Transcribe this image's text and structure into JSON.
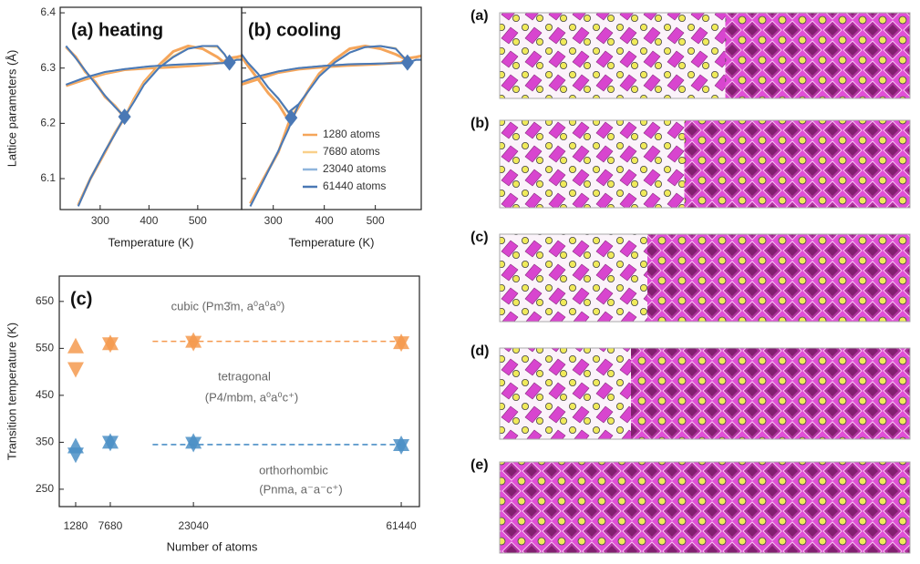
{
  "chart_data": [
    {
      "type": "line",
      "title": "(a) heating",
      "xlabel": "Temperature (K)",
      "ylabel": "Lattice parameters (Å)",
      "xlim": [
        218,
        590
      ],
      "ylim": [
        6.044,
        6.41
      ],
      "xticks": [
        300,
        400,
        500
      ],
      "yticks": [
        6.1,
        6.2,
        6.3,
        6.4
      ],
      "x": [
        230,
        250,
        270,
        290,
        310,
        330,
        350,
        370,
        390,
        420,
        450,
        480,
        510,
        540,
        555,
        565,
        580,
        590,
        null,
        230,
        270,
        310,
        350,
        400,
        450,
        500,
        550,
        565,
        null,
        255,
        280,
        310,
        330,
        350
      ],
      "series": [
        {
          "name": "1280 atoms",
          "color": "#f5a55a",
          "values": [
            6.338,
            6.32,
            6.293,
            6.275,
            6.248,
            6.232,
            6.21,
            6.245,
            6.275,
            6.305,
            6.33,
            6.34,
            6.335,
            6.32,
            6.31,
            6.318,
            6.32,
            6.322,
            null,
            6.268,
            6.28,
            6.29,
            6.297,
            6.3,
            6.302,
            6.305,
            6.31,
            6.318,
            null,
            6.052,
            6.1,
            6.148,
            6.182,
            6.21
          ]
        },
        {
          "name": "7680 atoms",
          "color": "#f9d08a",
          "values": [
            6.339,
            6.318,
            6.294,
            6.273,
            6.25,
            6.231,
            6.212,
            6.242,
            6.272,
            6.302,
            6.322,
            6.336,
            6.34,
            6.338,
            6.324,
            6.311,
            6.316,
            6.316,
            null,
            6.27,
            6.282,
            6.292,
            6.298,
            6.302,
            6.305,
            6.307,
            6.309,
            6.311,
            null,
            6.051,
            6.1,
            6.15,
            6.181,
            6.212
          ]
        },
        {
          "name": "23040 atoms",
          "color": "#8fb5dc",
          "values": [
            6.34,
            6.318,
            6.295,
            6.272,
            6.25,
            6.23,
            6.212,
            6.24,
            6.27,
            6.3,
            6.32,
            6.335,
            6.34,
            6.34,
            6.325,
            6.31,
            6.315,
            6.315,
            null,
            6.27,
            6.283,
            6.293,
            6.298,
            6.303,
            6.306,
            6.308,
            6.309,
            6.31,
            null,
            6.05,
            6.1,
            6.15,
            6.18,
            6.212
          ]
        },
        {
          "name": "61440 atoms",
          "color": "#4a78b5",
          "values": [
            6.34,
            6.318,
            6.295,
            6.272,
            6.25,
            6.23,
            6.212,
            6.24,
            6.27,
            6.3,
            6.32,
            6.335,
            6.34,
            6.34,
            6.325,
            6.31,
            6.315,
            6.315,
            null,
            6.27,
            6.283,
            6.293,
            6.298,
            6.303,
            6.306,
            6.308,
            6.309,
            6.31,
            null,
            6.05,
            6.1,
            6.15,
            6.18,
            6.212
          ]
        }
      ],
      "markers": {
        "color": "#4a78b5",
        "x": [
          350,
          565
        ],
        "values": [
          6.212,
          6.31
        ]
      }
    },
    {
      "type": "line",
      "title": "(b) cooling",
      "xlabel": "Temperature (K)",
      "xlim": [
        238,
        590
      ],
      "ylim": [
        6.044,
        6.41
      ],
      "xticks": [
        300,
        400,
        500
      ],
      "yticks": [
        6.1,
        6.2,
        6.3,
        6.4
      ],
      "legend": "right",
      "x": [
        230,
        250,
        270,
        290,
        310,
        330,
        350,
        370,
        390,
        420,
        450,
        480,
        510,
        540,
        555,
        565,
        580,
        590,
        null,
        230,
        270,
        310,
        350,
        400,
        450,
        500,
        550,
        565,
        null,
        255,
        280,
        310,
        330,
        350
      ],
      "series": [
        {
          "name": "1280 atoms",
          "color": "#f5a55a",
          "values": [
            6.33,
            6.305,
            6.28,
            6.255,
            6.235,
            6.205,
            6.23,
            6.262,
            6.29,
            6.315,
            6.335,
            6.34,
            6.335,
            6.325,
            6.318,
            6.318,
            6.32,
            6.322,
            null,
            6.268,
            6.28,
            6.292,
            6.298,
            6.302,
            6.305,
            6.307,
            6.31,
            6.318,
            null,
            6.055,
            6.098,
            6.148,
            6.2,
            6.23
          ]
        },
        {
          "name": "7680 atoms",
          "color": "#f9d08a",
          "values": [
            6.334,
            6.31,
            6.29,
            6.265,
            6.244,
            6.218,
            6.234,
            6.26,
            6.286,
            6.31,
            6.328,
            6.338,
            6.34,
            6.336,
            6.32,
            6.31,
            6.315,
            6.315,
            null,
            6.272,
            6.285,
            6.294,
            6.3,
            6.304,
            6.307,
            6.308,
            6.309,
            6.31,
            null,
            6.05,
            6.095,
            6.15,
            6.19,
            6.234
          ]
        },
        {
          "name": "23040 atoms",
          "color": "#8fb5dc",
          "values": [
            6.335,
            6.31,
            6.29,
            6.265,
            6.245,
            6.22,
            6.235,
            6.26,
            6.285,
            6.31,
            6.328,
            6.338,
            6.34,
            6.335,
            6.32,
            6.31,
            6.315,
            6.315,
            null,
            6.272,
            6.285,
            6.294,
            6.3,
            6.304,
            6.307,
            6.308,
            6.309,
            6.31,
            null,
            6.05,
            6.095,
            6.15,
            6.19,
            6.235
          ]
        },
        {
          "name": "61440 atoms",
          "color": "#4a78b5",
          "values": [
            6.335,
            6.31,
            6.29,
            6.265,
            6.245,
            6.22,
            6.235,
            6.26,
            6.285,
            6.31,
            6.328,
            6.338,
            6.34,
            6.335,
            6.32,
            6.31,
            6.315,
            6.315,
            null,
            6.272,
            6.285,
            6.294,
            6.3,
            6.304,
            6.307,
            6.308,
            6.309,
            6.31,
            null,
            6.05,
            6.095,
            6.15,
            6.19,
            6.235
          ]
        }
      ],
      "markers": {
        "color": "#4a78b5",
        "x": [
          335,
          563
        ],
        "values": [
          6.21,
          6.31
        ]
      }
    },
    {
      "type": "scatter",
      "title": "(c)",
      "xlabel": "Number of atoms",
      "ylabel": "Transition temperature (K)",
      "xlim": [
        -1750,
        64800
      ],
      "ylim": [
        213,
        704
      ],
      "xticks": [
        1280,
        7680,
        23040,
        61440
      ],
      "yticks": [
        250,
        350,
        450,
        550,
        650
      ],
      "x": [
        1280,
        7680,
        23040,
        61440
      ],
      "series": [
        {
          "color": "#f59a4f",
          "marker": "triangle-up",
          "values": [
            553,
            560,
            565,
            562
          ]
        },
        {
          "color": "#f59a4f",
          "marker": "triangle-down",
          "values": [
            507,
            560,
            563,
            562
          ]
        },
        {
          "color": "#4b8fc6",
          "marker": "triangle-up",
          "values": [
            340,
            350,
            350,
            345
          ]
        },
        {
          "color": "#4b8fc6",
          "marker": "triangle-down",
          "values": [
            325,
            350,
            348,
            343
          ]
        }
      ],
      "reference_lines": [
        {
          "value": 565,
          "color": "#f59a4f",
          "x": [
            15500,
            61440
          ]
        },
        {
          "value": 345,
          "color": "#4b8fc6",
          "x": [
            15500,
            61440
          ]
        }
      ],
      "annotations": [
        "cubic (Pm3̄m, a⁰a⁰a⁰)",
        "tetragonal",
        "(P4/mbm, a⁰a⁰c⁺)",
        "orthorhombic",
        "(Pnma, a⁻a⁻c⁺)"
      ]
    }
  ],
  "structure_labels": [
    "(a)",
    "(b)",
    "(c)",
    "(d)",
    "(e)"
  ]
}
